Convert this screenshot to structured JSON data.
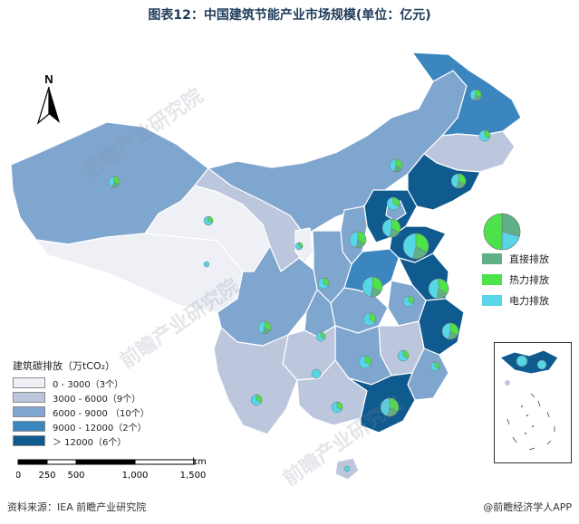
{
  "title": "图表12：中国建筑节能产业市场规模(单位：亿元)",
  "north_label": "N",
  "legend": {
    "title": "建筑碳排放（万tCO₂）",
    "classes": [
      {
        "label": "0 - 3000（3个）",
        "color": "#eef0f5"
      },
      {
        "label": "3000 - 6000（9个）",
        "color": "#bcc7de"
      },
      {
        "label": "6000 - 9000 （10个）",
        "color": "#7fa6cf"
      },
      {
        "label": "9000 - 12000（2个）",
        "color": "#3b86bf"
      },
      {
        "label": "＞ 12000（6个）",
        "color": "#0f5a8e"
      }
    ]
  },
  "pie_legend": {
    "items": [
      {
        "label": "直接排放",
        "color": "#5fb086"
      },
      {
        "label": "热力排放",
        "color": "#4ee24a"
      },
      {
        "label": "电力排放",
        "color": "#56d6e6"
      }
    ]
  },
  "scale": {
    "unit": "km",
    "ticks": [
      "0",
      "250",
      "500",
      "1,000",
      "1,500"
    ]
  },
  "source": "资料来源：IEA 前瞻产业研究院",
  "brand": "@前瞻经济学人APP",
  "watermark": "前瞻产业研究院"
}
